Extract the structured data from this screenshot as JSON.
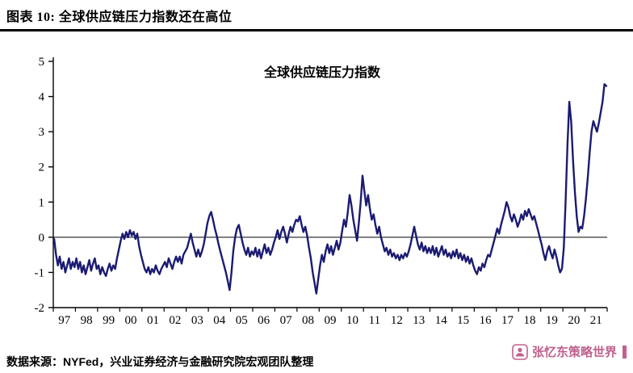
{
  "header": {
    "title": "图表 10:  全球供应链压力指数还在高位"
  },
  "footer": {
    "source": "数据来源：NYFed，兴业证券经济与金融研究院宏观团队整理"
  },
  "watermark": {
    "text": "张忆东策略世界",
    "color": "#c0608e"
  },
  "chart_data": {
    "type": "line",
    "title": "全球供应链压力指数",
    "series_name": "全球供应链压力指数",
    "frequency": "monthly",
    "x_start_year": 1997,
    "x_tick_labels": [
      "97",
      "98",
      "99",
      "00",
      "01",
      "02",
      "03",
      "04",
      "05",
      "06",
      "07",
      "08",
      "09",
      "10",
      "11",
      "12",
      "13",
      "14",
      "15",
      "16",
      "17",
      "18",
      "19",
      "20",
      "21"
    ],
    "y_ticks": [
      5,
      4,
      3,
      2,
      1,
      0,
      -1,
      -2
    ],
    "ylim": [
      -2,
      5
    ],
    "grid": false,
    "legend": "none",
    "line_color": "#1b1b72",
    "values": [
      -0.05,
      -0.5,
      -0.8,
      -0.55,
      -0.9,
      -0.7,
      -1.0,
      -0.8,
      -0.6,
      -0.9,
      -0.7,
      -0.85,
      -0.6,
      -0.9,
      -0.7,
      -1.0,
      -0.8,
      -1.05,
      -0.85,
      -0.65,
      -0.95,
      -0.75,
      -0.6,
      -0.9,
      -0.8,
      -1.05,
      -0.85,
      -1.0,
      -1.1,
      -0.9,
      -0.75,
      -0.95,
      -0.8,
      -0.9,
      -0.6,
      -0.35,
      -0.1,
      0.1,
      -0.05,
      0.15,
      0.0,
      0.2,
      0.05,
      0.15,
      -0.05,
      0.1,
      -0.25,
      -0.5,
      -0.7,
      -0.9,
      -1.0,
      -0.85,
      -1.05,
      -0.9,
      -1.0,
      -0.8,
      -0.95,
      -1.05,
      -0.9,
      -0.8,
      -0.7,
      -0.85,
      -0.6,
      -0.75,
      -0.9,
      -0.7,
      -0.55,
      -0.7,
      -0.55,
      -0.75,
      -0.5,
      -0.4,
      -0.3,
      -0.1,
      0.1,
      -0.15,
      -0.35,
      -0.55,
      -0.35,
      -0.55,
      -0.4,
      -0.2,
      0.1,
      0.4,
      0.6,
      0.72,
      0.5,
      0.25,
      0.05,
      -0.2,
      -0.4,
      -0.6,
      -0.8,
      -1.0,
      -1.25,
      -1.5,
      -1.0,
      -0.4,
      0.0,
      0.25,
      0.35,
      0.1,
      -0.15,
      -0.35,
      -0.5,
      -0.3,
      -0.55,
      -0.4,
      -0.5,
      -0.3,
      -0.55,
      -0.35,
      -0.6,
      -0.4,
      -0.2,
      -0.45,
      -0.3,
      -0.5,
      -0.35,
      -0.15,
      0.0,
      0.2,
      -0.05,
      0.15,
      0.3,
      0.1,
      -0.15,
      0.1,
      0.3,
      0.15,
      0.35,
      0.5,
      0.45,
      0.6,
      0.35,
      0.15,
      0.3,
      0.05,
      -0.3,
      -0.6,
      -1.0,
      -1.3,
      -1.6,
      -1.2,
      -0.8,
      -0.5,
      -0.7,
      -0.4,
      -0.2,
      -0.45,
      -0.25,
      -0.5,
      -0.3,
      -0.1,
      -0.35,
      -0.15,
      0.2,
      0.5,
      0.3,
      0.7,
      1.2,
      0.9,
      0.5,
      0.2,
      -0.1,
      0.4,
      1.0,
      1.75,
      1.3,
      0.9,
      1.2,
      0.8,
      0.5,
      0.65,
      0.35,
      0.1,
      0.3,
      0.0,
      -0.2,
      -0.4,
      -0.3,
      -0.5,
      -0.35,
      -0.55,
      -0.45,
      -0.6,
      -0.5,
      -0.65,
      -0.5,
      -0.6,
      -0.45,
      -0.55,
      -0.4,
      -0.2,
      0.05,
      0.3,
      0.05,
      -0.2,
      -0.35,
      -0.15,
      -0.4,
      -0.25,
      -0.45,
      -0.3,
      -0.45,
      -0.25,
      -0.5,
      -0.3,
      -0.55,
      -0.4,
      -0.25,
      -0.5,
      -0.35,
      -0.55,
      -0.45,
      -0.6,
      -0.4,
      -0.55,
      -0.35,
      -0.6,
      -0.45,
      -0.65,
      -0.5,
      -0.7,
      -0.55,
      -0.75,
      -0.6,
      -0.8,
      -0.95,
      -1.05,
      -0.85,
      -0.95,
      -0.75,
      -0.85,
      -0.65,
      -0.5,
      -0.55,
      -0.35,
      -0.15,
      0.05,
      0.25,
      0.1,
      0.35,
      0.55,
      0.75,
      1.0,
      0.85,
      0.6,
      0.45,
      0.65,
      0.5,
      0.3,
      0.45,
      0.65,
      0.5,
      0.75,
      0.6,
      0.8,
      0.65,
      0.5,
      0.6,
      0.4,
      0.2,
      0.0,
      -0.2,
      -0.45,
      -0.65,
      -0.4,
      -0.25,
      -0.45,
      -0.6,
      -0.35,
      -0.55,
      -0.8,
      -1.0,
      -0.9,
      -0.3,
      1.0,
      2.6,
      3.85,
      3.3,
      2.2,
      1.3,
      0.6,
      0.15,
      0.3,
      0.25,
      0.6,
      1.1,
      1.7,
      2.4,
      3.0,
      3.3,
      3.15,
      3.0,
      3.25,
      3.55,
      3.85,
      4.35,
      4.3
    ]
  }
}
